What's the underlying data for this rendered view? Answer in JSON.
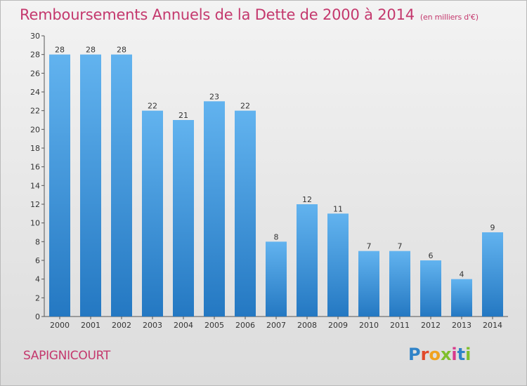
{
  "page": {
    "title": "Remboursements Annuels de la Dette de 2000 à 2014",
    "subtitle": "(en milliers d'€)",
    "commune": "SAPIGNICOURT",
    "logo_letters": [
      "P",
      "r",
      "o",
      "x",
      "i",
      "t",
      "i"
    ]
  },
  "colors": {
    "title": "#c4386d",
    "bar_top": "#62b3ef",
    "bar_bottom": "#2478c2",
    "logo": [
      "#2f83c8",
      "#e1482a",
      "#f0a21f",
      "#7fbf2c",
      "#d83a8c",
      "#2f83c8",
      "#7fbf2c"
    ]
  },
  "chart_data": {
    "type": "bar",
    "title": "Remboursements Annuels de la Dette de 2000 à 2014",
    "unit": "(en milliers d'€)",
    "categories": [
      "2000",
      "2001",
      "2002",
      "2003",
      "2004",
      "2005",
      "2006",
      "2007",
      "2008",
      "2009",
      "2010",
      "2011",
      "2012",
      "2013",
      "2014"
    ],
    "values": [
      28,
      28,
      28,
      22,
      21,
      23,
      22,
      8,
      12,
      11,
      7,
      7,
      6,
      4,
      9
    ],
    "ylim": [
      0,
      30
    ],
    "yticks": [
      0,
      2,
      4,
      6,
      8,
      10,
      12,
      14,
      16,
      18,
      20,
      22,
      24,
      26,
      28,
      30
    ],
    "grid": false,
    "legend": "none"
  }
}
